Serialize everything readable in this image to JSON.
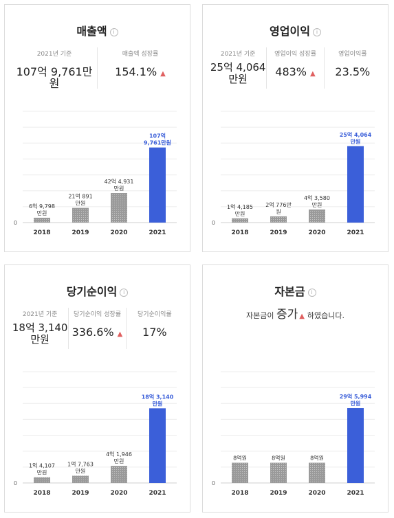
{
  "cards": [
    {
      "title": "매출액",
      "info_icon": "info-icon",
      "stats": [
        {
          "label": "2021년 기준",
          "value": "107억 9,761만원"
        },
        {
          "label": "매출액 성장률",
          "value": "154.1%",
          "trend": "up"
        }
      ]
    },
    {
      "title": "영업이익",
      "info_icon": "info-icon",
      "stats": [
        {
          "label": "2021년 기준",
          "value": "25억 4,064 만원"
        },
        {
          "label": "영업이익 성장률",
          "value": "483%",
          "trend": "up"
        },
        {
          "label": "영업이익률",
          "value": "23.5%"
        }
      ]
    },
    {
      "title": "당기순이익",
      "info_icon": "info-icon",
      "stats": [
        {
          "label": "2021년 기준",
          "value": "18억 3,140 만원"
        },
        {
          "label": "당기순이익 성장률",
          "value": "336.6%",
          "trend": "up"
        },
        {
          "label": "당기순이익률",
          "value": "17%"
        }
      ]
    },
    {
      "title": "자본금",
      "info_icon": "info-icon",
      "notice": {
        "before": "자본금이",
        "emph": "증가",
        "after": "하였습니다."
      }
    }
  ],
  "colors": {
    "past_bar": "#9a9a9a",
    "current_bar": "#3b5fd9",
    "current_label": "#3b5fd9",
    "trend_up": "#e06060"
  },
  "chart_data": [
    {
      "type": "bar",
      "title": "매출액",
      "categories": [
        "2018",
        "2019",
        "2020",
        "2021"
      ],
      "values": [
        6.9798,
        21.0891,
        42.4931,
        107.9761
      ],
      "unit": "억원",
      "data_labels": [
        "6억 9,798 만원",
        "21억 891 만원",
        "42억 4,931 만원",
        "107억 9,761만원"
      ],
      "zero_label": "0",
      "ylim": [
        0,
        160
      ],
      "grid": true
    },
    {
      "type": "bar",
      "title": "영업이익",
      "categories": [
        "2018",
        "2019",
        "2020",
        "2021"
      ],
      "values": [
        1.4185,
        2.0776,
        4.358,
        25.4064
      ],
      "unit": "억원",
      "data_labels": [
        "1억 4,185 만원",
        "2억 776만 원",
        "4억 3,580 만원",
        "25억 4,064 만원"
      ],
      "zero_label": "0",
      "ylim": [
        0,
        37
      ],
      "grid": true
    },
    {
      "type": "bar",
      "title": "당기순이익",
      "categories": [
        "2018",
        "2019",
        "2020",
        "2021"
      ],
      "values": [
        1.4107,
        1.7763,
        4.1946,
        18.314
      ],
      "unit": "억원",
      "data_labels": [
        "1억 4,107 만원",
        "1억 7,763 만원",
        "4억 1,946 만원",
        "18억 3,140 만원"
      ],
      "zero_label": "0",
      "ylim": [
        0,
        27.3
      ],
      "grid": true
    },
    {
      "type": "bar",
      "title": "자본금",
      "categories": [
        "2018",
        "2019",
        "2020",
        "2021"
      ],
      "values": [
        8,
        8,
        8,
        29.5994
      ],
      "unit": "억원",
      "data_labels": [
        "8억원",
        "8억원",
        "8억원",
        "29억 5,994 만원"
      ],
      "zero_label": "0",
      "ylim": [
        0,
        44
      ],
      "grid": true
    }
  ]
}
